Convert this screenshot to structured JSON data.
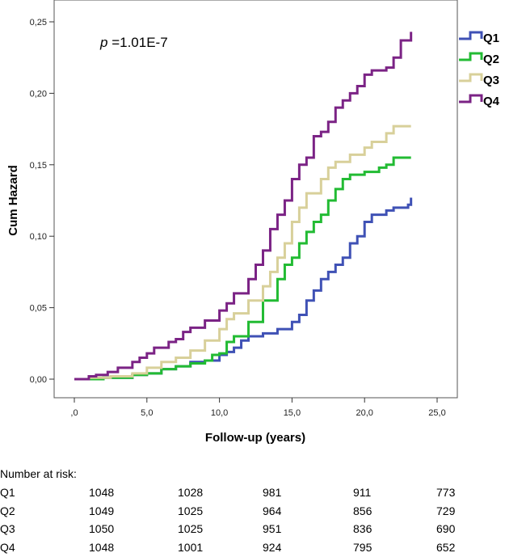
{
  "chart_data": {
    "type": "line",
    "step": true,
    "xlabel": "Follow-up (years)",
    "ylabel": "Cum Hazard",
    "annotation": {
      "italic": "p",
      "text": " =1.01E-7"
    },
    "xlim": [
      -1.4,
      26.3
    ],
    "ylim": [
      -0.014,
      0.264
    ],
    "xticks": [
      0,
      5,
      10,
      15,
      20,
      25
    ],
    "xtick_labels": [
      ",0",
      "5,0",
      "10,0",
      "15,0",
      "20,0",
      "25,0"
    ],
    "yticks": [
      0,
      0.05,
      0.1,
      0.15,
      0.2,
      0.25
    ],
    "ytick_labels": [
      "0,00",
      "0,05",
      "0,10",
      "0,15",
      "0,20",
      "0,25"
    ],
    "grid": false,
    "legend_position": "right-top",
    "series": [
      {
        "name": "Q1",
        "color": "#3f51b5",
        "x": [
          0,
          2,
          4,
          5,
          6,
          7,
          8,
          9,
          10,
          10.5,
          11,
          11.5,
          12,
          13,
          14,
          15,
          15.5,
          16,
          16.5,
          17,
          17.5,
          18,
          18.5,
          19,
          19.5,
          20,
          20.5,
          21.5,
          22,
          23,
          23.2
        ],
        "y": [
          0,
          0.001,
          0.003,
          0.004,
          0.007,
          0.009,
          0.012,
          0.013,
          0.017,
          0.019,
          0.022,
          0.027,
          0.03,
          0.032,
          0.035,
          0.04,
          0.045,
          0.055,
          0.062,
          0.07,
          0.075,
          0.08,
          0.085,
          0.095,
          0.1,
          0.11,
          0.115,
          0.118,
          0.12,
          0.122,
          0.127
        ]
      },
      {
        "name": "Q2",
        "color": "#22bb33",
        "x": [
          0,
          2,
          4,
          5,
          6,
          7,
          8,
          9,
          9.5,
          10,
          10.5,
          11,
          12,
          13,
          14,
          14.5,
          15,
          15.5,
          16,
          16.5,
          17,
          17.5,
          18,
          18.5,
          19,
          20,
          21,
          21.5,
          22,
          23.2
        ],
        "y": [
          0,
          0.001,
          0.003,
          0.004,
          0.007,
          0.009,
          0.011,
          0.013,
          0.017,
          0.018,
          0.026,
          0.03,
          0.04,
          0.055,
          0.07,
          0.08,
          0.085,
          0.095,
          0.103,
          0.11,
          0.115,
          0.125,
          0.133,
          0.14,
          0.143,
          0.145,
          0.148,
          0.15,
          0.155,
          0.155
        ]
      },
      {
        "name": "Q3",
        "color": "#d8d09a",
        "x": [
          0,
          1,
          2.5,
          4,
          5,
          6,
          7,
          8,
          9,
          10,
          10.5,
          11,
          12,
          13,
          13.5,
          14,
          14.5,
          15,
          15.5,
          16,
          17,
          17.5,
          18,
          19,
          20,
          20.5,
          21.5,
          22,
          23.2
        ],
        "y": [
          0,
          0.001,
          0.002,
          0.004,
          0.008,
          0.012,
          0.015,
          0.02,
          0.027,
          0.035,
          0.042,
          0.046,
          0.055,
          0.065,
          0.075,
          0.085,
          0.095,
          0.11,
          0.12,
          0.13,
          0.14,
          0.148,
          0.152,
          0.157,
          0.162,
          0.166,
          0.172,
          0.177,
          0.177
        ]
      },
      {
        "name": "Q4",
        "color": "#7b2385",
        "x": [
          0,
          0.7,
          1,
          1.5,
          2.3,
          3,
          4,
          4.5,
          5,
          5.5,
          6.5,
          7,
          7.5,
          8,
          9,
          10,
          10.5,
          11,
          12,
          12.5,
          13,
          13.5,
          14,
          14.5,
          15,
          15.5,
          16,
          16.5,
          17,
          17.5,
          18,
          18.5,
          19,
          19.5,
          20,
          20.5,
          21.5,
          22,
          22.5,
          23.2
        ],
        "y": [
          0,
          0,
          0.002,
          0.003,
          0.005,
          0.008,
          0.012,
          0.015,
          0.018,
          0.022,
          0.026,
          0.028,
          0.033,
          0.036,
          0.041,
          0.048,
          0.053,
          0.06,
          0.07,
          0.08,
          0.09,
          0.105,
          0.115,
          0.125,
          0.14,
          0.15,
          0.155,
          0.17,
          0.173,
          0.18,
          0.19,
          0.195,
          0.2,
          0.205,
          0.213,
          0.216,
          0.218,
          0.225,
          0.237,
          0.243
        ]
      }
    ]
  },
  "risk_table": {
    "title": "Number at risk:",
    "rows": [
      {
        "label": "Q1",
        "values": [
          "1048",
          "1028",
          "981",
          "911",
          "773"
        ]
      },
      {
        "label": "Q2",
        "values": [
          "1049",
          "1025",
          "964",
          "856",
          "729"
        ]
      },
      {
        "label": "Q3",
        "values": [
          "1050",
          "1025",
          "951",
          "836",
          "690"
        ]
      },
      {
        "label": "Q4",
        "values": [
          "1048",
          "1001",
          "924",
          "795",
          "652"
        ]
      }
    ]
  }
}
